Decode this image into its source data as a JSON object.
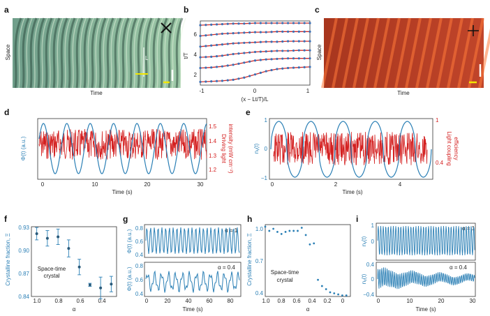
{
  "panels": {
    "a": {
      "label": "a",
      "ylabel": "Space",
      "xlabel": "Time",
      "scale_label": "L"
    },
    "b": {
      "label": "b",
      "ylabel": "t/T",
      "xlabel": "(x − Lt/T)/L",
      "yticks": [
        "2",
        "4",
        "6"
      ],
      "xticks": [
        "-1",
        "0",
        "1"
      ]
    },
    "c": {
      "label": "c",
      "ylabel": "Space",
      "xlabel": "Time"
    },
    "d": {
      "label": "d",
      "ylabel_left": "Φ(t) (a.u.)",
      "ylabel_right_1": "Driving light",
      "ylabel_right_2": "intensity (mW cm⁻²)",
      "xlabel": "Time (s)",
      "xticks": [
        "0",
        "10",
        "20",
        "30"
      ],
      "yticks_right": [
        "1.5",
        "1.4",
        "1.3",
        "1.2"
      ]
    },
    "e": {
      "label": "e",
      "ylabel_left": "nᵧ(t)",
      "ylabel_right_1": "Light coupling",
      "ylabel_right_2": "efficiency",
      "xlabel": "Time (s)",
      "xticks": [
        "0",
        "2",
        "4"
      ],
      "yticks_left": [
        "1",
        "0",
        "−1"
      ],
      "yticks_right": [
        "1",
        "0.4"
      ]
    },
    "f": {
      "label": "f",
      "ylabel": "Crystalline fraction, Ξ",
      "xlabel": "α",
      "note_1": "Space-time",
      "note_2": "crystal",
      "yticks": [
        "0.93",
        "0.90",
        "0.87",
        "0.84"
      ],
      "xticks": [
        "1.0",
        "0.8",
        "0.6",
        "0.4"
      ]
    },
    "g": {
      "label": "g",
      "ylabel_top": "Φ(t) (a.u.)",
      "ylabel_bot": "Φ(t) (a.u.)",
      "alpha_top": "α = 1",
      "alpha_bot": "α = 0.4",
      "xlabel": "Time (s)",
      "yticks_top": [
        "0.8",
        "0.6",
        "0.4"
      ],
      "yticks_bot": [
        "0.8",
        "0.6",
        "0.4"
      ],
      "xticks": [
        "0",
        "20",
        "40",
        "60",
        "80"
      ]
    },
    "h": {
      "label": "h",
      "ylabel": "Crystalline fraction, Ξ",
      "xlabel": "α",
      "note_1": "Space-time",
      "note_2": "crystal",
      "yticks": [
        "1.0",
        "0.7",
        "0.4"
      ],
      "xticks": [
        "1.0",
        "0.8",
        "0.6",
        "0.4",
        "0.2",
        "0"
      ]
    },
    "i": {
      "label": "i",
      "ylabel_top": "nᵧ(t)",
      "ylabel_bot": "nᵧ(t)",
      "alpha_top": "α = 1",
      "alpha_bot": "α = 0.4",
      "xlabel": "Time (s)",
      "yticks_top": [
        "1",
        "0"
      ],
      "yticks_bot": [
        "0.4",
        "0",
        "−0.4"
      ],
      "xticks": [
        "0",
        "10",
        "20",
        "30"
      ]
    }
  },
  "chart_data": [
    {
      "type": "scatter",
      "panel": "f",
      "xlabel": "α",
      "ylabel": "Crystalline fraction, Ξ",
      "x": [
        1.0,
        0.9,
        0.8,
        0.7,
        0.6,
        0.5,
        0.4,
        0.3
      ],
      "y": [
        0.921,
        0.915,
        0.917,
        0.902,
        0.878,
        0.855,
        0.851,
        0.856
      ],
      "yerr": [
        0.008,
        0.01,
        0.01,
        0.011,
        0.01,
        0.002,
        0.014,
        0.01
      ],
      "xlim": [
        1.05,
        0.25
      ],
      "ylim": [
        0.84,
        0.93
      ]
    },
    {
      "type": "scatter",
      "panel": "h",
      "xlabel": "α",
      "ylabel": "Crystalline fraction, Ξ",
      "x": [
        1.0,
        0.95,
        0.9,
        0.85,
        0.8,
        0.75,
        0.7,
        0.65,
        0.6,
        0.55,
        0.5,
        0.45,
        0.4,
        0.35,
        0.3,
        0.25,
        0.2,
        0.15,
        0.1,
        0.05,
        0.0
      ],
      "y": [
        1.0,
        0.96,
        0.98,
        0.95,
        0.93,
        0.95,
        0.96,
        0.96,
        0.96,
        0.99,
        0.92,
        0.83,
        0.84,
        0.49,
        0.43,
        0.4,
        0.37,
        0.36,
        0.35,
        0.34,
        0.34
      ],
      "xlim": [
        1.0,
        -0.05
      ],
      "ylim": [
        0.33,
        1.02
      ]
    },
    {
      "type": "scatter",
      "panel": "b",
      "xlabel": "(x − Lt/T)/L",
      "ylabel": "t/T",
      "x": [
        -1.0,
        -0.8,
        -0.6,
        -0.4,
        -0.2,
        0.0,
        0.2,
        0.4,
        0.6,
        0.8,
        1.0
      ],
      "series": [
        {
          "offset": 1.0,
          "y": [
            1.3,
            1.35,
            1.4,
            1.5,
            1.7,
            2.0,
            2.3,
            2.5,
            2.6,
            2.65,
            2.7
          ]
        },
        {
          "offset": 2.0,
          "y": [
            2.6,
            2.65,
            2.75,
            2.9,
            3.1,
            3.3,
            3.4,
            3.45,
            3.5,
            3.5,
            3.5
          ]
        },
        {
          "offset": 3.0,
          "y": [
            3.6,
            3.65,
            3.75,
            3.9,
            4.0,
            4.1,
            4.15,
            4.2,
            4.2,
            4.25,
            4.25
          ]
        },
        {
          "offset": 4.0,
          "y": [
            4.6,
            4.7,
            4.8,
            4.9,
            4.95,
            5.0,
            5.05,
            5.05,
            5.1,
            5.1,
            5.1
          ]
        },
        {
          "offset": 5.0,
          "y": [
            5.6,
            5.7,
            5.8,
            5.85,
            5.9,
            5.95,
            5.95,
            6.0,
            6.0,
            6.0,
            6.0
          ]
        },
        {
          "offset": 6.0,
          "y": [
            6.6,
            6.65,
            6.7,
            6.75,
            6.75,
            6.8,
            6.8,
            6.8,
            6.8,
            6.8,
            6.8
          ]
        }
      ],
      "xlim": [
        -1,
        1
      ],
      "ylim": [
        1,
        7
      ]
    }
  ],
  "colors": {
    "blue": "#2a7fb5",
    "red": "#d42020",
    "dots": "#3a6fb5",
    "curve": "#cc2a2a"
  }
}
